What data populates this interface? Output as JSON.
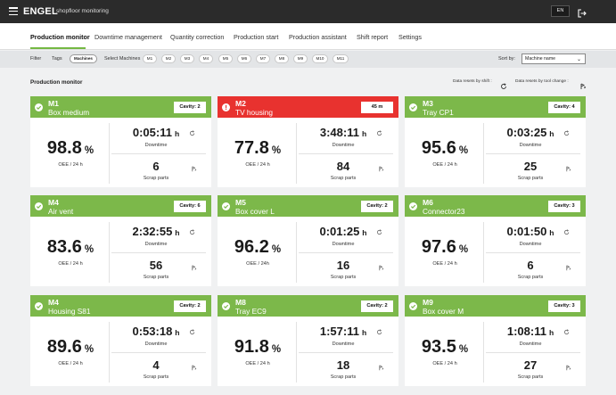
{
  "app": {
    "brand": "ENGEL",
    "subtitle": "shopfloor monitoring",
    "language": "EN"
  },
  "nav": {
    "items": [
      {
        "label": "Production monitor",
        "active": true
      },
      {
        "label": "Downtime management"
      },
      {
        "label": "Quantity correction"
      },
      {
        "label": "Production start"
      },
      {
        "label": "Production assistant"
      },
      {
        "label": "Shift report"
      },
      {
        "label": "Settings"
      }
    ]
  },
  "filter": {
    "label": "Filter",
    "tags_label": "Tags",
    "machines_label": "Machines",
    "select_label": "Select Machines",
    "machines": [
      "M1",
      "M2",
      "M3",
      "M4",
      "M5",
      "M6",
      "M7",
      "M8",
      "M9",
      "M10",
      "M11"
    ],
    "sort_label": "Sort by:",
    "sort_value": "Machine name"
  },
  "section": {
    "title": "Production monitor",
    "reset_shift": "Data resets by shift :",
    "reset_tool": "Data resets by tool change :"
  },
  "colors": {
    "ok": "#7cb84a",
    "alert": "#e8322f",
    "accent": "#74b843"
  },
  "labels": {
    "oee": "OEE / 24 h",
    "downtime": "Downtime",
    "scrap": "Scrap parts",
    "pct": "%",
    "hours": "h"
  },
  "cards": [
    {
      "id": "M1",
      "name": "Box medium",
      "badge": "Cavity: 2",
      "status": "ok",
      "oee": "98.8",
      "oee_label": "OEE / 24 h",
      "downtime": "0:05:11",
      "scrap": "6"
    },
    {
      "id": "M2",
      "name": "TV housing",
      "badge": "45 m",
      "status": "alert",
      "oee": "77.8",
      "oee_label": "OEE / 24 h",
      "downtime": "3:48:11",
      "scrap": "84"
    },
    {
      "id": "M3",
      "name": "Tray CP1",
      "badge": "Cavity: 4",
      "status": "ok",
      "oee": "95.6",
      "oee_label": "OEE / 24 h",
      "downtime": "0:03:25",
      "scrap": "25"
    },
    {
      "id": "M4",
      "name": "Air vent",
      "badge": "Cavity: 6",
      "status": "ok",
      "oee": "83.6",
      "oee_label": "OEE / 24 h",
      "downtime": "2:32:55",
      "scrap": "56"
    },
    {
      "id": "M5",
      "name": "Box cover L",
      "badge": "Cavity: 2",
      "status": "ok",
      "oee": "96.2",
      "oee_label": "OEE / 24h",
      "downtime": "0:01:25",
      "scrap": "16"
    },
    {
      "id": "M6",
      "name": "Connector23",
      "badge": "Cavity: 3",
      "status": "ok",
      "oee": "97.6",
      "oee_label": "OEE / 24 h",
      "downtime": "0:01:50",
      "scrap": "6"
    },
    {
      "id": "M4",
      "name": "Housing S81",
      "badge": "Cavity: 2",
      "status": "ok",
      "oee": "89.6",
      "oee_label": "OEE / 24 h",
      "downtime": "0:53:18",
      "scrap": "4"
    },
    {
      "id": "M8",
      "name": "Tray EC9",
      "badge": "Cavity: 2",
      "status": "ok",
      "oee": "91.8",
      "oee_label": "OEE / 24 h",
      "downtime": "1:57:11",
      "scrap": "18"
    },
    {
      "id": "M9",
      "name": "Box cover M",
      "badge": "Cavity: 3",
      "status": "ok",
      "oee": "93.5",
      "oee_label": "OEE / 24 h",
      "downtime": "1:08:11",
      "scrap": "27"
    }
  ]
}
